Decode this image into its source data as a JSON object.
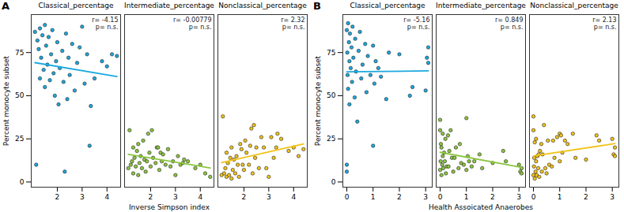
{
  "chart_data": [
    {
      "type": "scatter",
      "panel_label": "A",
      "xlabel": "Inverse Simpson index",
      "ylabel": "Percent monocyte subset",
      "xlim": [
        0.95,
        4.55
      ],
      "xticks": [
        2,
        3,
        4
      ],
      "ylim": [
        -3,
        97
      ],
      "yticks": [
        0,
        25,
        50,
        75
      ],
      "x": [
        1.1,
        1.15,
        1.2,
        1.25,
        1.3,
        1.3,
        1.35,
        1.4,
        1.45,
        1.5,
        1.5,
        1.55,
        1.6,
        1.65,
        1.7,
        1.75,
        1.8,
        1.85,
        1.9,
        1.95,
        2.0,
        2.05,
        2.1,
        2.2,
        2.25,
        2.3,
        2.35,
        2.4,
        2.45,
        2.5,
        2.6,
        2.7,
        2.8,
        2.9,
        3.0,
        3.1,
        3.2,
        3.3,
        3.35,
        3.5,
        3.8,
        4.0,
        4.2,
        4.4
      ],
      "series": [
        {
          "name": "Classical_percentage",
          "color": "#1ba9de",
          "annotations": [
            "r= -4.15",
            "p= n.s."
          ],
          "values": [
            87,
            10,
            82,
            77,
            89,
            60,
            72,
            85,
            65,
            91,
            55,
            79,
            68,
            84,
            59,
            74,
            88,
            63,
            50,
            70,
            81,
            45,
            66,
            76,
            58,
            6,
            86,
            48,
            72,
            62,
            80,
            53,
            69,
            78,
            90,
            57,
            74,
            21,
            44,
            60,
            70,
            67,
            74,
            73
          ]
        },
        {
          "name": "Intermediate_percentage",
          "color": "#8cc63f",
          "annotations": [
            "r= -0.00779",
            "p= n.s."
          ],
          "values": [
            8,
            30,
            10,
            12,
            5,
            20,
            14,
            9,
            18,
            4,
            22,
            11,
            15,
            8,
            24,
            13,
            6,
            12,
            28,
            17,
            9,
            30,
            14,
            11,
            20,
            20,
            7,
            17,
            12,
            16,
            10,
            19,
            9,
            12,
            4,
            15,
            10,
            11,
            13,
            12,
            8,
            10,
            5,
            3
          ]
        },
        {
          "name": "Nonclassical_percentage",
          "color": "#f2c318",
          "annotations": [
            "r= 2.32",
            "p= n.s."
          ],
          "values": [
            4,
            38,
            5,
            8,
            3,
            17,
            11,
            4,
            14,
            2,
            20,
            7,
            13,
            5,
            15,
            10,
            3,
            22,
            19,
            10,
            7,
            24,
            17,
            10,
            21,
            31,
            5,
            33,
            14,
            20,
            8,
            26,
            20,
            8,
            3,
            26,
            14,
            20,
            28,
            25,
            18,
            20,
            15,
            19
          ]
        }
      ]
    },
    {
      "type": "scatter",
      "panel_label": "B",
      "xlabel": "Health Assoicated Anaerobes",
      "ylabel": "Percent monocyte subset",
      "xlim": [
        -0.15,
        3.25
      ],
      "xticks": [
        0,
        1,
        2,
        3
      ],
      "ylim": [
        -3,
        97
      ],
      "yticks": [
        0,
        25,
        50,
        75
      ],
      "x": [
        0.0,
        0.0,
        0.0,
        0.02,
        0.03,
        0.05,
        0.05,
        0.08,
        0.1,
        0.1,
        0.12,
        0.15,
        0.18,
        0.2,
        0.22,
        0.25,
        0.3,
        0.32,
        0.35,
        0.4,
        0.45,
        0.5,
        0.55,
        0.6,
        0.7,
        0.75,
        0.8,
        0.9,
        1.0,
        1.0,
        1.05,
        1.1,
        1.2,
        1.3,
        1.5,
        1.6,
        2.0,
        2.4,
        2.5,
        3.0,
        3.05,
        3.1,
        3.1
      ],
      "series": [
        {
          "name": "Classical_percentage",
          "color": "#1ba9de",
          "annotations": [
            "r= -5.16",
            "p= n.s."
          ],
          "values": [
            88,
            10,
            6,
            75,
            62,
            92,
            54,
            81,
            70,
            45,
            86,
            66,
            78,
            58,
            90,
            72,
            49,
            83,
            64,
            35,
            76,
            87,
            60,
            68,
            80,
            52,
            73,
            62,
            79,
            21,
            57,
            70,
            66,
            61,
            48,
            75,
            74,
            50,
            55,
            53,
            72,
            78,
            69
          ]
        },
        {
          "name": "Intermediate_percentage",
          "color": "#8cc63f",
          "annotations": [
            "r= 0.849",
            "p= n.s."
          ],
          "values": [
            7,
            30,
            36,
            12,
            22,
            4,
            20,
            10,
            15,
            28,
            8,
            17,
            12,
            25,
            5,
            9,
            27,
            9,
            18,
            30,
            14,
            6,
            14,
            20,
            8,
            22,
            11,
            10,
            7,
            37,
            15,
            12,
            9,
            12,
            16,
            8,
            11,
            18,
            12,
            10,
            6,
            5,
            8
          ]
        },
        {
          "name": "Nonclassical_percentage",
          "color": "#f2c318",
          "annotations": [
            "r= 2.13",
            "p= n.s."
          ],
          "values": [
            4,
            38,
            30,
            9,
            14,
            2,
            23,
            6,
            12,
            25,
            4,
            15,
            8,
            16,
            3,
            18,
            22,
            6,
            16,
            33,
            8,
            5,
            24,
            10,
            9,
            24,
            14,
            26,
            12,
            28,
            27,
            17,
            24,
            22,
            28,
            14,
            13,
            27,
            24,
            25,
            16,
            15,
            20
          ]
        }
      ]
    }
  ]
}
